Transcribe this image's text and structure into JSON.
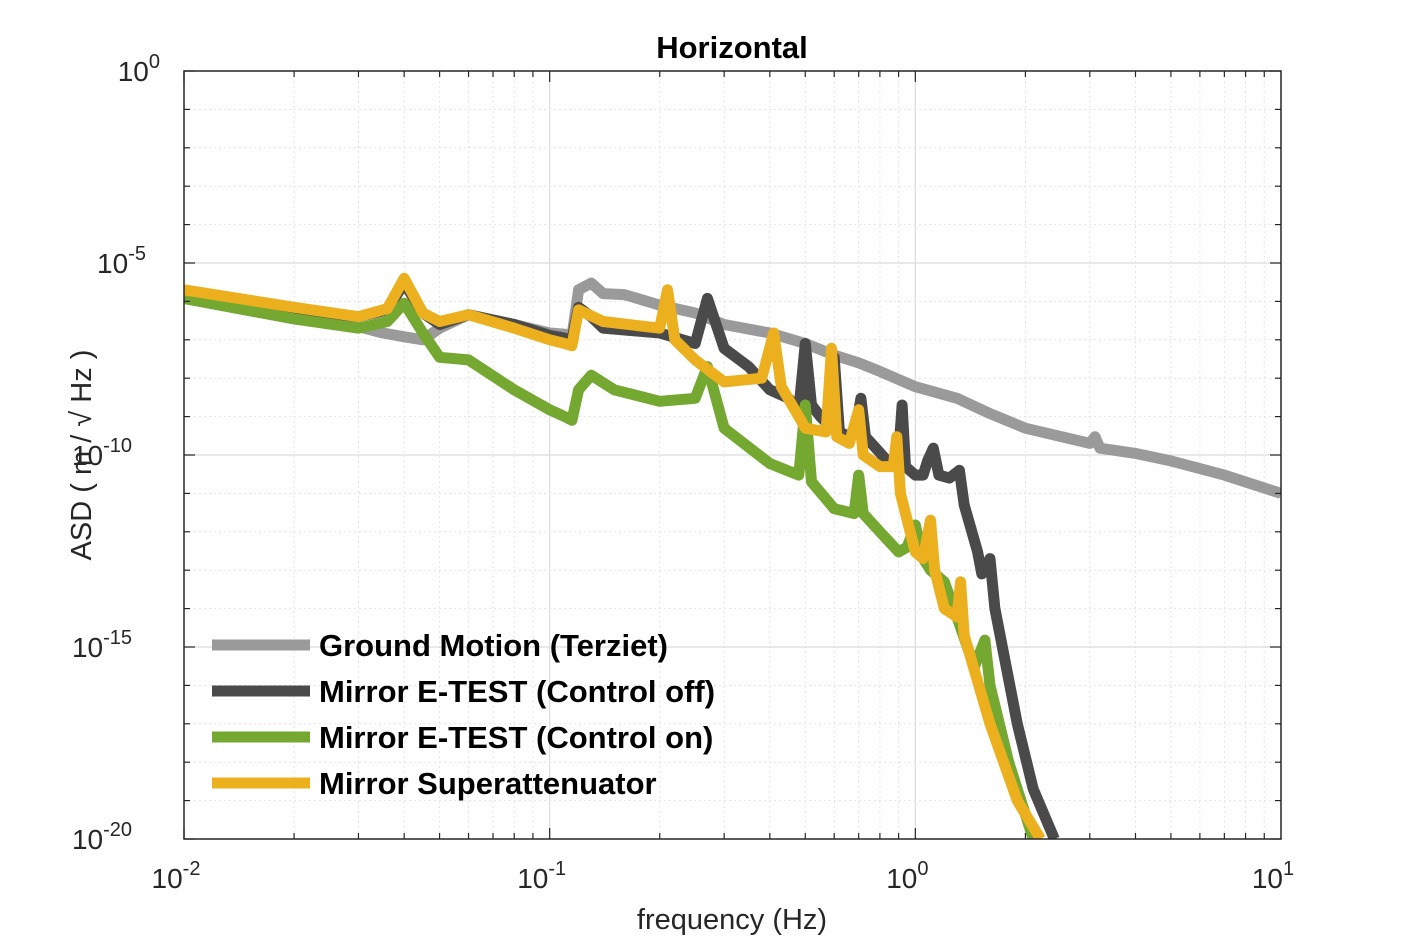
{
  "chart_data": {
    "type": "line",
    "title": "Horizontal",
    "xlabel": "frequency (Hz)",
    "ylabel": "ASD ( m / √ Hz )",
    "xscale": "log",
    "yscale": "log",
    "xlim": [
      0.01,
      10
    ],
    "ylim": [
      1e-20,
      1
    ],
    "grid": true,
    "legend_location": "bottom-left",
    "x_ticks": [
      {
        "value": 0.01,
        "base": "10",
        "exp": "-2"
      },
      {
        "value": 0.1,
        "base": "10",
        "exp": "-1"
      },
      {
        "value": 1,
        "base": "10",
        "exp": "0"
      },
      {
        "value": 10,
        "base": "10",
        "exp": "1"
      }
    ],
    "y_ticks": [
      {
        "value": 1,
        "base": "10",
        "exp": "0"
      },
      {
        "value": 1e-05,
        "base": "10",
        "exp": "-5"
      },
      {
        "value": 1e-10,
        "base": "10",
        "exp": "-10"
      },
      {
        "value": 1e-15,
        "base": "10",
        "exp": "-15"
      },
      {
        "value": 1e-20,
        "base": "10",
        "exp": "-20"
      }
    ],
    "series": [
      {
        "name": "Ground Motion (Terziet)",
        "color": "#9a9a9a",
        "points": [
          [
            0.01,
            1.2e-06
          ],
          [
            0.02,
            3.5e-07
          ],
          [
            0.03,
            2.2e-07
          ],
          [
            0.035,
            1.5e-07
          ],
          [
            0.04,
            1.2e-07
          ],
          [
            0.045,
            1e-07
          ],
          [
            0.05,
            2e-07
          ],
          [
            0.06,
            4.5e-07
          ],
          [
            0.08,
            2.5e-07
          ],
          [
            0.1,
            1.5e-07
          ],
          [
            0.11,
            1.4e-07
          ],
          [
            0.115,
            1.2e-07
          ],
          [
            0.12,
            2e-06
          ],
          [
            0.13,
            3e-06
          ],
          [
            0.14,
            1.6e-06
          ],
          [
            0.16,
            1.5e-06
          ],
          [
            0.2,
            8e-07
          ],
          [
            0.25,
            5e-07
          ],
          [
            0.3,
            2.5e-07
          ],
          [
            0.4,
            1.5e-07
          ],
          [
            0.5,
            8e-08
          ],
          [
            0.6,
            4e-08
          ],
          [
            0.7,
            2.5e-08
          ],
          [
            0.8,
            1.5e-08
          ],
          [
            1.0,
            6e-09
          ],
          [
            1.3,
            3e-09
          ],
          [
            1.6,
            1.2e-09
          ],
          [
            2.0,
            5e-10
          ],
          [
            3.0,
            2e-10
          ],
          [
            3.1,
            3e-10
          ],
          [
            3.2,
            1.5e-10
          ],
          [
            4.0,
            1.1e-10
          ],
          [
            5.0,
            7e-11
          ],
          [
            7.0,
            3e-11
          ],
          [
            10.0,
            1e-11
          ]
        ]
      },
      {
        "name": "Mirror E-TEST (Control off)",
        "color": "#4a4a4a",
        "points": [
          [
            0.01,
            1.5e-06
          ],
          [
            0.02,
            6e-07
          ],
          [
            0.03,
            4e-07
          ],
          [
            0.036,
            6e-07
          ],
          [
            0.04,
            3e-06
          ],
          [
            0.045,
            5e-07
          ],
          [
            0.05,
            2.5e-07
          ],
          [
            0.06,
            4.5e-07
          ],
          [
            0.08,
            2.5e-07
          ],
          [
            0.1,
            1.3e-07
          ],
          [
            0.11,
            1.1e-07
          ],
          [
            0.115,
            1e-07
          ],
          [
            0.12,
            7e-07
          ],
          [
            0.13,
            4e-07
          ],
          [
            0.14,
            2e-07
          ],
          [
            0.2,
            1.5e-07
          ],
          [
            0.25,
            8e-08
          ],
          [
            0.27,
            1.2e-06
          ],
          [
            0.3,
            6e-08
          ],
          [
            0.35,
            2e-08
          ],
          [
            0.4,
            5e-09
          ],
          [
            0.45,
            3e-09
          ],
          [
            0.48,
            1.5e-09
          ],
          [
            0.5,
            8e-08
          ],
          [
            0.52,
            2e-09
          ],
          [
            0.55,
            1e-09
          ],
          [
            0.58,
            6e-10
          ],
          [
            0.6,
            3.5e-08
          ],
          [
            0.62,
            4e-10
          ],
          [
            0.66,
            3e-10
          ],
          [
            0.69,
            6e-10
          ],
          [
            0.71,
            3e-09
          ],
          [
            0.73,
            3e-10
          ],
          [
            0.78,
            1.5e-10
          ],
          [
            0.85,
            6e-11
          ],
          [
            0.88,
            7e-11
          ],
          [
            0.9,
            1e-10
          ],
          [
            0.92,
            2e-09
          ],
          [
            0.94,
            5e-11
          ],
          [
            1.0,
            3e-11
          ],
          [
            1.05,
            3e-11
          ],
          [
            1.08,
            7e-11
          ],
          [
            1.12,
            1.5e-10
          ],
          [
            1.16,
            3e-11
          ],
          [
            1.24,
            2.5e-11
          ],
          [
            1.32,
            4e-11
          ],
          [
            1.36,
            5e-12
          ],
          [
            1.48,
            3e-13
          ],
          [
            1.52,
            8e-14
          ],
          [
            1.6,
            2e-13
          ],
          [
            1.65,
            1e-14
          ],
          [
            1.9,
            1e-17
          ],
          [
            2.1,
            2e-19
          ],
          [
            2.4,
            1e-20
          ]
        ]
      },
      {
        "name": "Mirror E-TEST (Control on)",
        "color": "#74a830",
        "points": [
          [
            0.01,
            1.2e-06
          ],
          [
            0.02,
            3.5e-07
          ],
          [
            0.03,
            2e-07
          ],
          [
            0.036,
            3e-07
          ],
          [
            0.04,
            9e-07
          ],
          [
            0.045,
            1.5e-07
          ],
          [
            0.05,
            3.5e-08
          ],
          [
            0.06,
            3e-08
          ],
          [
            0.08,
            5e-09
          ],
          [
            0.1,
            1.5e-09
          ],
          [
            0.11,
            1e-09
          ],
          [
            0.115,
            8e-10
          ],
          [
            0.12,
            5e-09
          ],
          [
            0.13,
            1.2e-08
          ],
          [
            0.15,
            5e-09
          ],
          [
            0.2,
            2.5e-09
          ],
          [
            0.25,
            3e-09
          ],
          [
            0.27,
            2e-08
          ],
          [
            0.3,
            5e-10
          ],
          [
            0.4,
            6e-11
          ],
          [
            0.48,
            3e-11
          ],
          [
            0.5,
            2e-09
          ],
          [
            0.52,
            2e-11
          ],
          [
            0.6,
            4e-12
          ],
          [
            0.68,
            3e-12
          ],
          [
            0.7,
            3e-11
          ],
          [
            0.72,
            3e-12
          ],
          [
            0.8,
            1e-12
          ],
          [
            0.9,
            3e-13
          ],
          [
            0.95,
            4e-13
          ],
          [
            1.0,
            1.5e-12
          ],
          [
            1.05,
            2e-13
          ],
          [
            1.1,
            1e-13
          ],
          [
            1.2,
            5e-14
          ],
          [
            1.3,
            6e-15
          ],
          [
            1.45,
            3e-16
          ],
          [
            1.55,
            1.5e-15
          ],
          [
            1.6,
            1e-16
          ],
          [
            1.8,
            1e-18
          ],
          [
            2.1,
            1e-20
          ]
        ]
      },
      {
        "name": "Mirror Superattenuator",
        "color": "#ecb01f",
        "points": [
          [
            0.01,
            2e-06
          ],
          [
            0.02,
            7e-07
          ],
          [
            0.03,
            4e-07
          ],
          [
            0.036,
            6.5e-07
          ],
          [
            0.04,
            4e-06
          ],
          [
            0.045,
            5e-07
          ],
          [
            0.05,
            3e-07
          ],
          [
            0.06,
            4.5e-07
          ],
          [
            0.08,
            2e-07
          ],
          [
            0.1,
            1e-07
          ],
          [
            0.11,
            8e-08
          ],
          [
            0.115,
            7e-08
          ],
          [
            0.12,
            6e-07
          ],
          [
            0.14,
            3e-07
          ],
          [
            0.2,
            2e-07
          ],
          [
            0.21,
            2e-06
          ],
          [
            0.22,
            1e-07
          ],
          [
            0.25,
            3e-08
          ],
          [
            0.3,
            8e-09
          ],
          [
            0.38,
            1e-08
          ],
          [
            0.41,
            1.5e-07
          ],
          [
            0.43,
            6e-09
          ],
          [
            0.48,
            1e-09
          ],
          [
            0.5,
            5e-10
          ],
          [
            0.57,
            4e-10
          ],
          [
            0.59,
            6e-08
          ],
          [
            0.61,
            3e-10
          ],
          [
            0.66,
            2e-10
          ],
          [
            0.7,
            1.5e-09
          ],
          [
            0.72,
            1e-10
          ],
          [
            0.8,
            5e-11
          ],
          [
            0.87,
            5e-11
          ],
          [
            0.89,
            3e-10
          ],
          [
            0.91,
            1e-11
          ],
          [
            1.0,
            3e-13
          ],
          [
            1.05,
            2e-13
          ],
          [
            1.1,
            2e-12
          ],
          [
            1.13,
            1e-13
          ],
          [
            1.2,
            1e-14
          ],
          [
            1.3,
            6e-15
          ],
          [
            1.33,
            5e-14
          ],
          [
            1.36,
            2e-15
          ],
          [
            1.6,
            1e-17
          ],
          [
            1.9,
            1e-19
          ],
          [
            2.2,
            1e-20
          ]
        ]
      }
    ]
  }
}
